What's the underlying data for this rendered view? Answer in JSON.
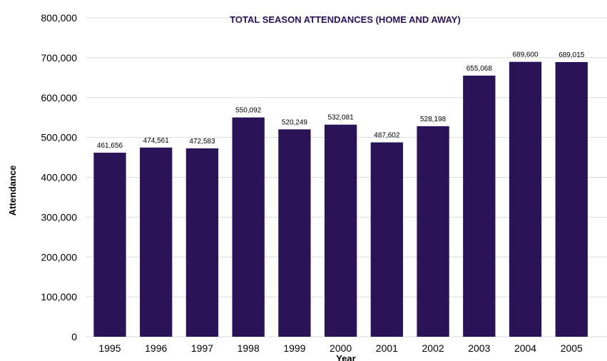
{
  "chart_data": {
    "type": "bar",
    "title": "TOTAL SEASON ATTENDANCES (HOME AND AWAY)",
    "xlabel": "Year",
    "ylabel": "Attendance",
    "categories": [
      "1995",
      "1996",
      "1997",
      "1998",
      "1999",
      "2000",
      "2001",
      "2002",
      "2003",
      "2004",
      "2005"
    ],
    "values": [
      461656,
      474561,
      472583,
      550092,
      520249,
      532081,
      487602,
      528198,
      655068,
      689600,
      689015
    ],
    "data_labels": [
      "461,656",
      "474,561",
      "472,583",
      "550,092",
      "520,249",
      "532,081",
      "487,602",
      "528,198",
      "655,068",
      "689,600",
      "689,015"
    ],
    "ylim": [
      0,
      800000
    ],
    "yticks": [
      0,
      100000,
      200000,
      300000,
      400000,
      500000,
      600000,
      700000,
      800000
    ],
    "ytick_labels": [
      "0",
      "100,000",
      "200,000",
      "300,000",
      "400,000",
      "500,000",
      "600,000",
      "700,000",
      "800,000"
    ],
    "grid": true,
    "legend": "none",
    "bar_color": "#2a1457",
    "title_color": "#2a1457"
  }
}
